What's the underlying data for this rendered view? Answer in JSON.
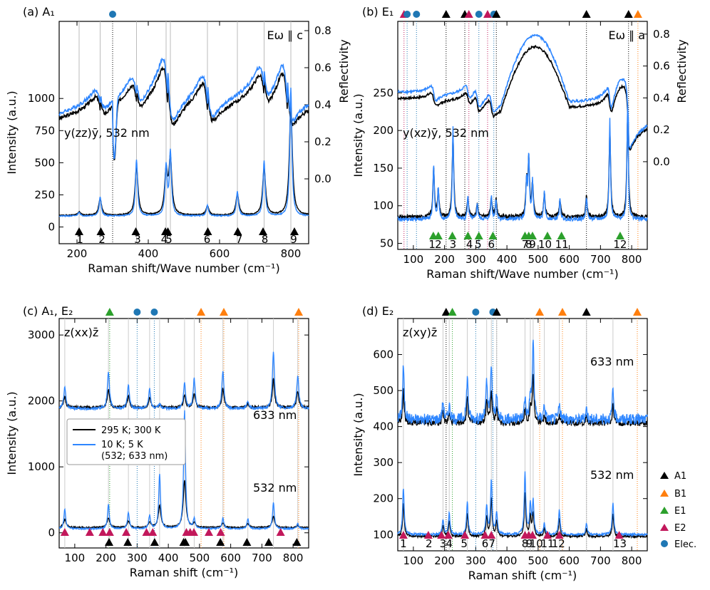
{
  "figure": {
    "legend": {
      "black_label": "295 K; 300 K",
      "blue_label_1": "10 K; 5 K",
      "blue_label_2": "(532; 633 nm)"
    },
    "side_legend": [
      {
        "label": "A1",
        "color": "#000000",
        "marker": "triangle"
      },
      {
        "label": "B1",
        "color": "#ff7f0e",
        "marker": "triangle"
      },
      {
        "label": "E1",
        "color": "#2ca02c",
        "marker": "triangle"
      },
      {
        "label": "E2",
        "color": "#c2185b",
        "marker": "triangle"
      },
      {
        "label": "Elec.",
        "color": "#1f77b4",
        "marker": "circle"
      }
    ],
    "colors": {
      "black": "#000000",
      "blue": "#2e86ff",
      "A1": "#000000",
      "B1": "#ff7f0e",
      "E1": "#2ca02c",
      "E2": "#c2185b",
      "Elec": "#1f77b4"
    }
  },
  "chart_data": [
    {
      "type": "line",
      "id": "a",
      "title": "(a) A₁",
      "xlabel": "Raman shift/Wave number (cm⁻¹)",
      "ylabel": "Intensity (a.u.)",
      "y2label": "Reflectivity",
      "xlim": [
        150,
        850
      ],
      "xticks": [
        200,
        400,
        600,
        800
      ],
      "ylim": [
        -130,
        1600
      ],
      "yticks": [
        0,
        250,
        500,
        750,
        1000
      ],
      "refl_ylim": [
        -0.35,
        0.85
      ],
      "refl_ticks": [
        0.0,
        0.2,
        0.4,
        0.6,
        0.8
      ],
      "top_markers": [
        {
          "x": 300,
          "kind": "Elec"
        }
      ],
      "annot_top": "Eω ∥ c",
      "annot_left": "y(zz)ȳ, 532 nm",
      "peaks": [
        206,
        265,
        367,
        450,
        462,
        566,
        650,
        725,
        800
      ],
      "peak_heights": [
        30,
        140,
        420,
        360,
        470,
        80,
        180,
        410,
        950
      ],
      "peak_labels": [
        "1",
        "2",
        "3",
        "4",
        "5",
        "6",
        "7",
        "8",
        "9"
      ],
      "label_positions": [
        208,
        270,
        370,
        445,
        458,
        565,
        655,
        727,
        808
      ],
      "mode_markers": [
        {
          "x": 206,
          "kind": "A1"
        },
        {
          "x": 267,
          "kind": "A1"
        },
        {
          "x": 365,
          "kind": "A1"
        },
        {
          "x": 448,
          "kind": "A1"
        },
        {
          "x": 455,
          "kind": "A1"
        },
        {
          "x": 567,
          "kind": "A1"
        },
        {
          "x": 651,
          "kind": "A1"
        },
        {
          "x": 722,
          "kind": "A1"
        },
        {
          "x": 810,
          "kind": "A1"
        }
      ],
      "baseline": 90
    },
    {
      "type": "line",
      "id": "b",
      "title": "(b) E₁",
      "xlabel": "Raman shift/Wave number (cm⁻¹)",
      "ylabel": "Intensity (a.u.)",
      "y2label": "Reflectivity",
      "xlim": [
        50,
        850
      ],
      "xticks": [
        100,
        200,
        300,
        400,
        500,
        600,
        700,
        800
      ],
      "ylim": [
        42,
        345
      ],
      "yticks": [
        50,
        100,
        150,
        200,
        250
      ],
      "refl_ylim": [
        -0.55,
        0.88
      ],
      "refl_ticks": [
        0.0,
        0.2,
        0.4,
        0.6,
        0.8
      ],
      "top_markers": [
        {
          "x": 70,
          "kind": "E2"
        },
        {
          "x": 80,
          "kind": "Elec"
        },
        {
          "x": 110,
          "kind": "Elec"
        },
        {
          "x": 205,
          "kind": "A1"
        },
        {
          "x": 265,
          "kind": "A1"
        },
        {
          "x": 278,
          "kind": "E2"
        },
        {
          "x": 310,
          "kind": "Elec"
        },
        {
          "x": 338,
          "kind": "E2"
        },
        {
          "x": 358,
          "kind": "Elec"
        },
        {
          "x": 366,
          "kind": "A1"
        },
        {
          "x": 655,
          "kind": "A1"
        },
        {
          "x": 790,
          "kind": "A1"
        },
        {
          "x": 820,
          "kind": "B1"
        }
      ],
      "annot_top": "Eω ∥ a",
      "annot_left": "y(xz)ȳ, 532 nm",
      "peaks": [
        165,
        180,
        227,
        275,
        305,
        350,
        365,
        463,
        470,
        482,
        520,
        570,
        655,
        730,
        787
      ],
      "peak_heights": [
        70,
        40,
        120,
        30,
        20,
        30,
        25,
        50,
        80,
        50,
        35,
        25,
        30,
        130,
        150
      ],
      "peak_labels": [
        "1",
        "2",
        "3",
        "4",
        "5",
        "6",
        "7",
        "8",
        "9",
        "10",
        "11",
        "12"
      ],
      "label_positions": [
        160,
        180,
        227,
        280,
        308,
        350,
        458,
        470,
        482,
        522,
        576,
        763
      ],
      "mode_markers": [
        {
          "x": 164,
          "kind": "E1"
        },
        {
          "x": 180,
          "kind": "E1"
        },
        {
          "x": 225,
          "kind": "E1"
        },
        {
          "x": 275,
          "kind": "E1"
        },
        {
          "x": 310,
          "kind": "E1"
        },
        {
          "x": 355,
          "kind": "E1"
        },
        {
          "x": 458,
          "kind": "E1"
        },
        {
          "x": 470,
          "kind": "E1"
        },
        {
          "x": 482,
          "kind": "E1"
        },
        {
          "x": 530,
          "kind": "E1"
        },
        {
          "x": 575,
          "kind": "E1"
        },
        {
          "x": 763,
          "kind": "E1"
        }
      ],
      "baseline": 85
    },
    {
      "type": "line",
      "id": "c",
      "title": "(c) A₁, E₂",
      "xlabel": "Raman shift (cm⁻¹)",
      "ylabel": "Intensity (a.u.)",
      "xlim": [
        50,
        850
      ],
      "xticks": [
        100,
        200,
        300,
        400,
        500,
        600,
        700,
        800
      ],
      "ylim": [
        -230,
        3250
      ],
      "yticks": [
        0,
        1000,
        2000,
        3000
      ],
      "top_markers": [
        {
          "x": 212,
          "kind": "E1"
        },
        {
          "x": 300,
          "kind": "Elec"
        },
        {
          "x": 355,
          "kind": "Elec"
        },
        {
          "x": 505,
          "kind": "B1"
        },
        {
          "x": 578,
          "kind": "B1"
        },
        {
          "x": 818,
          "kind": "B1"
        }
      ],
      "annot_left": "z(xx)z̄",
      "annot_633": "633 nm",
      "annot_532": "532 nm",
      "peaks": [
        68,
        208,
        272,
        340,
        372,
        452,
        483,
        575,
        655,
        737,
        815
      ],
      "peak_heights_633": [
        330,
        550,
        350,
        300,
        70,
        380,
        450,
        580,
        120,
        870,
        500
      ],
      "peak_heights_532": [
        300,
        370,
        250,
        200,
        830,
        1800,
        150,
        160,
        150,
        400,
        80
      ],
      "mode_markers": [
        {
          "x": 68,
          "kind": "E2"
        },
        {
          "x": 148,
          "kind": "E2"
        },
        {
          "x": 190,
          "kind": "E2"
        },
        {
          "x": 212,
          "kind": "E2"
        },
        {
          "x": 265,
          "kind": "E2"
        },
        {
          "x": 330,
          "kind": "E2"
        },
        {
          "x": 350,
          "kind": "E2"
        },
        {
          "x": 458,
          "kind": "E2"
        },
        {
          "x": 470,
          "kind": "E2"
        },
        {
          "x": 482,
          "kind": "E2"
        },
        {
          "x": 530,
          "kind": "E2"
        },
        {
          "x": 568,
          "kind": "E2"
        },
        {
          "x": 760,
          "kind": "E2"
        },
        {
          "x": 210,
          "kind": "A1"
        },
        {
          "x": 270,
          "kind": "A1"
        },
        {
          "x": 356,
          "kind": "A1"
        },
        {
          "x": 449,
          "kind": "A1"
        },
        {
          "x": 455,
          "kind": "A1"
        },
        {
          "x": 567,
          "kind": "A1"
        },
        {
          "x": 652,
          "kind": "A1"
        },
        {
          "x": 722,
          "kind": "A1"
        },
        {
          "x": 812,
          "kind": "A1"
        }
      ]
    },
    {
      "type": "line",
      "id": "d",
      "title": "(d) E₂",
      "xlabel": "Raman shift (cm⁻¹)",
      "ylabel": "Intensity (a.u.)",
      "xlim": [
        50,
        850
      ],
      "xticks": [
        100,
        200,
        300,
        400,
        500,
        600,
        700,
        800
      ],
      "ylim": [
        55,
        700
      ],
      "yticks": [
        100,
        200,
        300,
        400,
        500,
        600
      ],
      "top_markers": [
        {
          "x": 205,
          "kind": "A1"
        },
        {
          "x": 225,
          "kind": "E1"
        },
        {
          "x": 300,
          "kind": "Elec"
        },
        {
          "x": 355,
          "kind": "Elec"
        },
        {
          "x": 367,
          "kind": "A1"
        },
        {
          "x": 505,
          "kind": "B1"
        },
        {
          "x": 578,
          "kind": "B1"
        },
        {
          "x": 655,
          "kind": "A1"
        },
        {
          "x": 818,
          "kind": "B1"
        }
      ],
      "annot_left": "z(xy)z̄",
      "annot_633": "633 nm",
      "annot_532": "532 nm",
      "peaks": [
        68,
        195,
        215,
        273,
        335,
        350,
        367,
        458,
        475,
        484,
        520,
        568,
        655,
        740
      ],
      "peak_heights_633": [
        150,
        50,
        40,
        120,
        100,
        150,
        60,
        60,
        60,
        220,
        40,
        40,
        30,
        80
      ],
      "peak_heights_532": [
        130,
        40,
        60,
        90,
        80,
        150,
        60,
        170,
        80,
        90,
        30,
        70,
        30,
        90
      ],
      "peak_labels": [
        "1",
        "2",
        "3",
        "4",
        "5",
        "6",
        "7",
        "8",
        "9",
        "10",
        "11",
        "12",
        "13"
      ],
      "label_positions": [
        68,
        150,
        195,
        215,
        263,
        330,
        352,
        458,
        472,
        494,
        530,
        565,
        762
      ],
      "mode_markers": [
        {
          "x": 68,
          "kind": "E2"
        },
        {
          "x": 148,
          "kind": "E2"
        },
        {
          "x": 190,
          "kind": "E2"
        },
        {
          "x": 212,
          "kind": "E2"
        },
        {
          "x": 265,
          "kind": "E2"
        },
        {
          "x": 330,
          "kind": "E2"
        },
        {
          "x": 350,
          "kind": "E2"
        },
        {
          "x": 458,
          "kind": "E2"
        },
        {
          "x": 470,
          "kind": "E2"
        },
        {
          "x": 482,
          "kind": "E2"
        },
        {
          "x": 530,
          "kind": "E2"
        },
        {
          "x": 568,
          "kind": "E2"
        },
        {
          "x": 760,
          "kind": "E2"
        }
      ]
    }
  ]
}
